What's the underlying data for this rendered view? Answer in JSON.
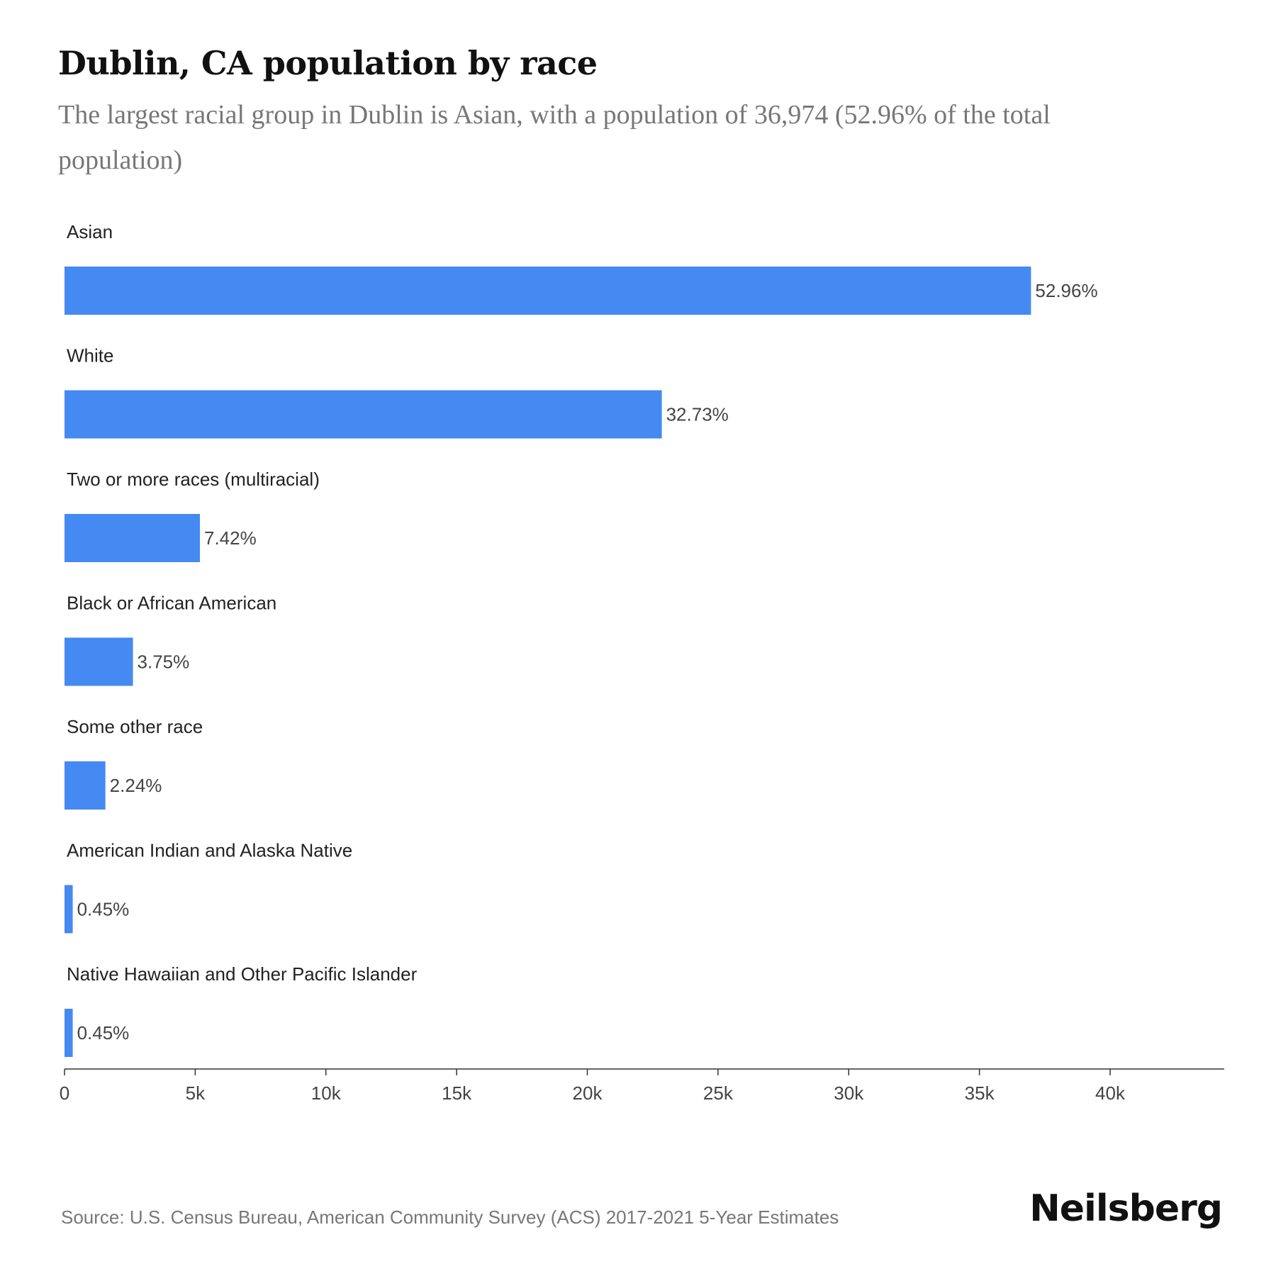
{
  "header": {
    "title": "Dublin, CA population by race",
    "subtitle": "The largest racial group in Dublin is Asian, with a population of 36,974 (52.96% of the total population)"
  },
  "chart_data": {
    "type": "bar",
    "orientation": "horizontal",
    "categories": [
      "Asian",
      "White",
      "Two or more races (multiracial)",
      "Black or African American",
      "Some other race",
      "American Indian and Alaska Native",
      "Native Hawaiian and Other Pacific Islander"
    ],
    "values": [
      36974,
      22850,
      5180,
      2618,
      1564,
      314,
      314
    ],
    "data_labels": [
      "52.96%",
      "32.73%",
      "7.42%",
      "3.75%",
      "2.24%",
      "0.45%",
      "0.45%"
    ],
    "xlim": [
      0,
      44400
    ],
    "ticks": [
      0,
      5000,
      10000,
      15000,
      20000,
      25000,
      30000,
      35000,
      40000
    ],
    "tick_labels": [
      "0",
      "5k",
      "10k",
      "15k",
      "20k",
      "25k",
      "30k",
      "35k",
      "40k"
    ],
    "bar_color": "#4589f2",
    "grid": false,
    "legend": "none"
  },
  "footer": {
    "source": "Source: U.S. Census Bureau, American Community Survey (ACS) 2017-2021 5-Year Estimates",
    "brand": "Neilsberg"
  }
}
